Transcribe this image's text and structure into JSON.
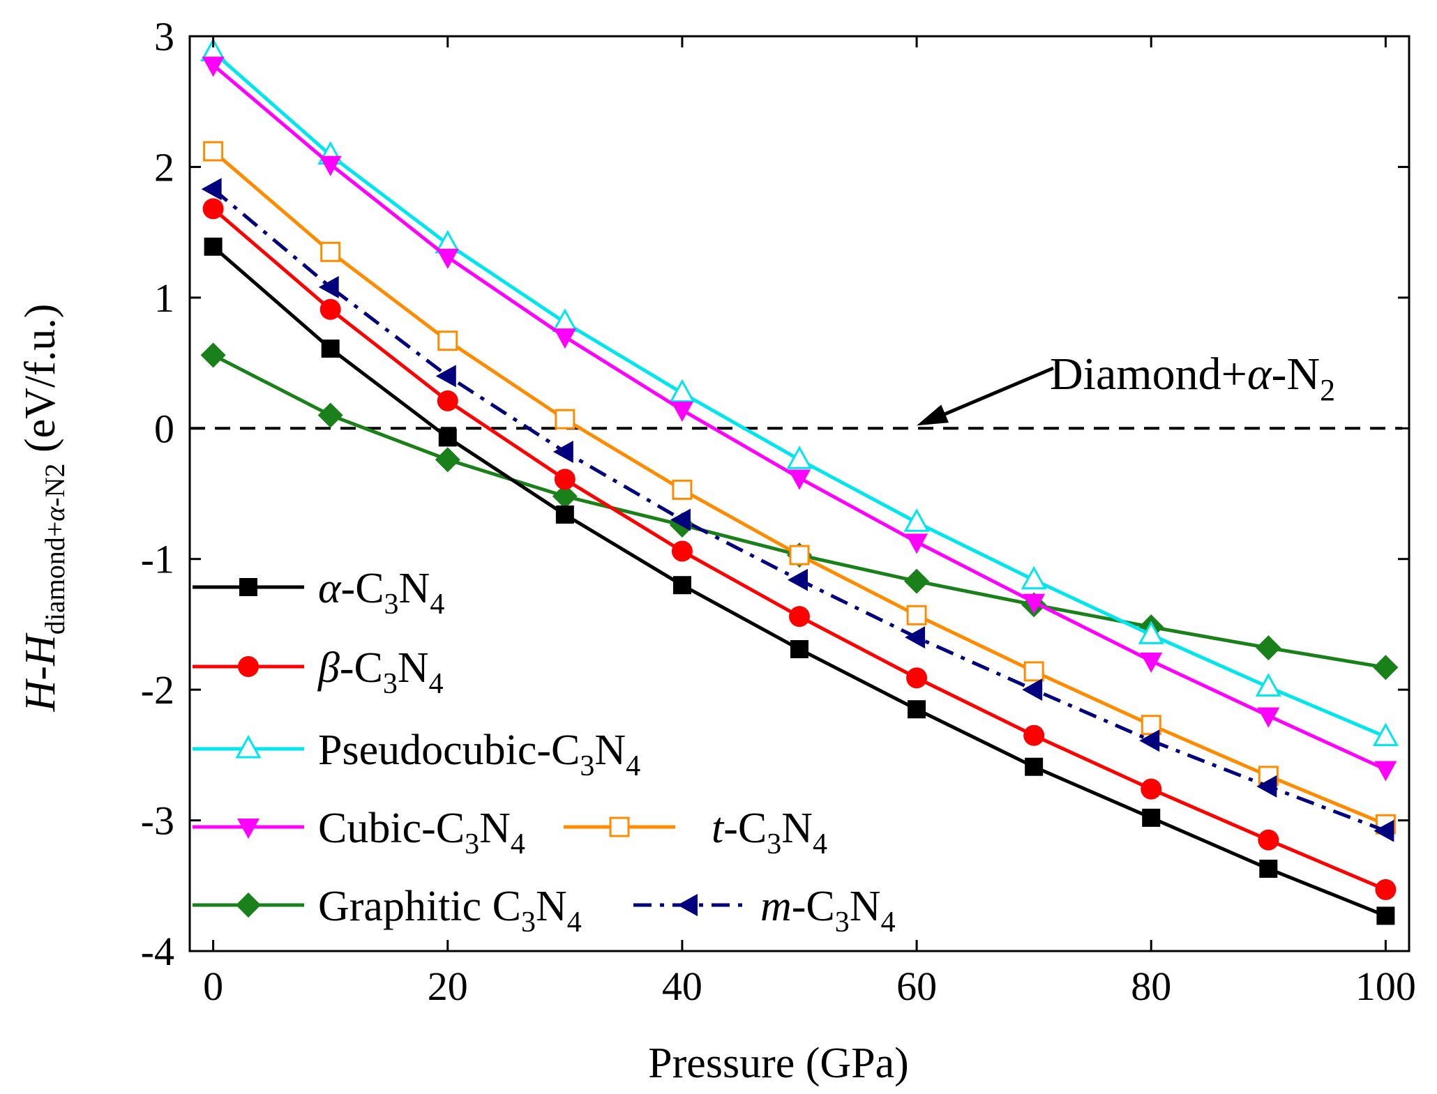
{
  "chart_data": {
    "type": "line",
    "xlabel": "Pressure (GPa)",
    "ylabel": {
      "prefix_italic": "H",
      "dash": "-",
      "h_italic": "H",
      "sub_a": "diamond+",
      "sub_alpha": "α",
      "sub_b": "-N2",
      "unit": "(eV/f.u.)"
    },
    "xlim": [
      -2,
      102
    ],
    "ylim": [
      -4,
      3
    ],
    "xticks": [
      0,
      20,
      40,
      60,
      80,
      100
    ],
    "yticks": [
      -4,
      -3,
      -2,
      -1,
      0,
      1,
      2,
      3
    ],
    "x": [
      0,
      10,
      20,
      30,
      40,
      50,
      60,
      70,
      80,
      90,
      100
    ],
    "reference": {
      "y": 0,
      "label_a": "Diamond+",
      "label_alpha": "α",
      "label_b": "-N",
      "label_sub": "2",
      "arrow_tip_x": 60
    },
    "series": [
      {
        "key": "alpha",
        "prefix": "α",
        "prefix_italic": true,
        "name": "-C",
        "sub3": "3",
        "n": "N",
        "sub4": "4",
        "color": "#000000",
        "marker": "square-filled",
        "dash": "solid",
        "values": [
          1.39,
          0.61,
          -0.07,
          -0.66,
          -1.2,
          -1.69,
          -2.15,
          -2.59,
          -2.98,
          -3.37,
          -3.73
        ]
      },
      {
        "key": "beta",
        "prefix": "β",
        "prefix_italic": true,
        "name": "-C",
        "sub3": "3",
        "n": "N",
        "sub4": "4",
        "color": "#ff0000",
        "marker": "circle-filled",
        "dash": "solid",
        "values": [
          1.68,
          0.91,
          0.21,
          -0.39,
          -0.94,
          -1.44,
          -1.91,
          -2.35,
          -2.76,
          -3.15,
          -3.53
        ]
      },
      {
        "key": "pseudocubic",
        "prefix": "",
        "prefix_italic": false,
        "name": "Pseudocubic-C",
        "sub3": "3",
        "n": "N",
        "sub4": "4",
        "color": "#00e5ee",
        "marker": "triangle-up-open",
        "dash": "solid",
        "values": [
          2.88,
          2.09,
          1.41,
          0.81,
          0.27,
          -0.24,
          -0.72,
          -1.16,
          -1.58,
          -1.98,
          -2.36
        ]
      },
      {
        "key": "cubic",
        "prefix": "",
        "prefix_italic": false,
        "name": "Cubic-C",
        "sub3": "3",
        "n": "N",
        "sub4": "4",
        "color": "#ff00ff",
        "marker": "triangle-down-filled",
        "dash": "solid",
        "values": [
          2.78,
          2.02,
          1.31,
          0.7,
          0.14,
          -0.38,
          -0.87,
          -1.33,
          -1.78,
          -2.2,
          -2.61
        ]
      },
      {
        "key": "t",
        "prefix": "t",
        "prefix_italic": true,
        "name": "-C",
        "sub3": "3",
        "n": "N",
        "sub4": "4",
        "color": "#ff8c00",
        "marker": "square-open",
        "dash": "solid",
        "values": [
          2.12,
          1.35,
          0.67,
          0.07,
          -0.47,
          -0.97,
          -1.43,
          -1.86,
          -2.27,
          -2.66,
          -3.03
        ]
      },
      {
        "key": "graphitic",
        "prefix": "",
        "prefix_italic": false,
        "name": "Graphitic C",
        "sub3": "3",
        "n": "N",
        "sub4": "4",
        "color": "#1a801a",
        "marker": "diamond-filled",
        "dash": "solid",
        "values": [
          0.56,
          0.1,
          -0.24,
          -0.52,
          -0.74,
          -0.97,
          -1.17,
          -1.35,
          -1.52,
          -1.68,
          -1.83
        ]
      },
      {
        "key": "m",
        "prefix": "m",
        "prefix_italic": true,
        "name": "-C",
        "sub3": "3",
        "n": "N",
        "sub4": "4",
        "color": "#00007f",
        "marker": "triangle-left-filled",
        "dash": "dashdot",
        "values": [
          1.83,
          1.08,
          0.4,
          -0.18,
          -0.7,
          -1.16,
          -1.6,
          -2.0,
          -2.39,
          -2.74,
          -3.08
        ]
      }
    ]
  }
}
